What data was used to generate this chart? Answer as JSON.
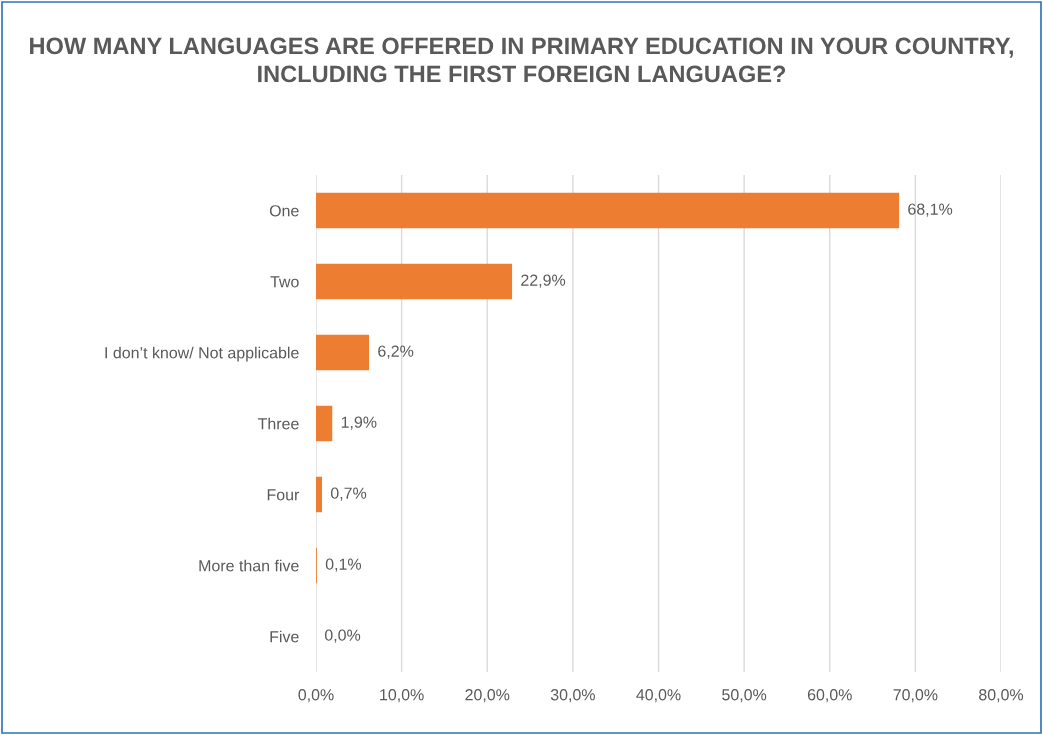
{
  "chart_data": {
    "type": "bar",
    "orientation": "horizontal",
    "title": "HOW MANY LANGUAGES ARE OFFERED IN PRIMARY EDUCATION IN YOUR COUNTRY, INCLUDING THE FIRST FOREIGN LANGUAGE?",
    "categories": [
      "One",
      "Two",
      "I don’t know/ Not applicable",
      "Three",
      "Four",
      "More than five",
      "Five"
    ],
    "values": [
      68.1,
      22.9,
      6.2,
      1.9,
      0.7,
      0.1,
      0.0
    ],
    "value_labels": [
      "68,1%",
      "22,9%",
      "6,2%",
      "1,9%",
      "0,7%",
      "0,1%",
      "0,0%"
    ],
    "color": "#ed7d31",
    "xlim": [
      0,
      80
    ],
    "xticks": [
      {
        "value": 0,
        "label": "0,0%"
      },
      {
        "value": 10,
        "label": "10,0%"
      },
      {
        "value": 20,
        "label": "20,0%"
      },
      {
        "value": 30,
        "label": "30,0%"
      },
      {
        "value": 40,
        "label": "40,0%"
      },
      {
        "value": 50,
        "label": "50,0%"
      },
      {
        "value": 60,
        "label": "60,0%"
      },
      {
        "value": 70,
        "label": "70,0%"
      },
      {
        "value": 80,
        "label": "80,0%"
      }
    ],
    "grid": "x"
  }
}
